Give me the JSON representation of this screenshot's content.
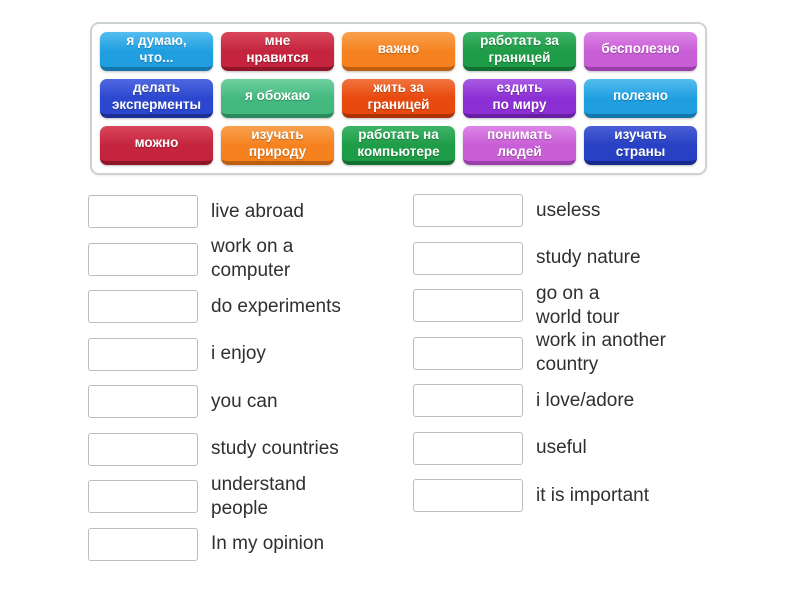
{
  "page": {
    "background": "#ffffff"
  },
  "board": {
    "background": "#ffffff",
    "border_color": "#cdd3d5",
    "tiles": [
      {
        "label": "я думаю,\nчто...",
        "color": {
          "light": "#55bdef",
          "base": "#1f9fe0",
          "dark": "#1377ac"
        }
      },
      {
        "label": "мне\nнравится",
        "color": {
          "light": "#d9475c",
          "base": "#c4243e",
          "dark": "#8f1628"
        }
      },
      {
        "label": "важно",
        "color": {
          "light": "#f9a14e",
          "base": "#f5821f",
          "dark": "#bd5e10"
        }
      },
      {
        "label": "работать за\nграницей",
        "color": {
          "light": "#3db567",
          "base": "#1f9c47",
          "dark": "#146f33"
        }
      },
      {
        "label": "бесполезно",
        "color": {
          "light": "#dc85e6",
          "base": "#c95fd6",
          "dark": "#9a3fa9"
        }
      },
      {
        "label": "делать\nэксперменты",
        "color": {
          "light": "#4f68e0",
          "base": "#2c47cf",
          "dark": "#1c2f96"
        }
      },
      {
        "label": "я обожаю",
        "color": {
          "light": "#6fd0a0",
          "base": "#43b97f",
          "dark": "#2b8a5b"
        }
      },
      {
        "label": "жить за\nграницей",
        "color": {
          "light": "#f2743f",
          "base": "#e8490e",
          "dark": "#ad3208"
        }
      },
      {
        "label": "ездить\nпо миру",
        "color": {
          "light": "#a85ae3",
          "base": "#8c2fd4",
          "dark": "#661fa0"
        }
      },
      {
        "label": "полезно",
        "color": {
          "light": "#55bdef",
          "base": "#1f9fe0",
          "dark": "#1377ac"
        }
      },
      {
        "label": "можно",
        "color": {
          "light": "#d9475c",
          "base": "#c4243e",
          "dark": "#8f1628"
        }
      },
      {
        "label": "изучать\nприроду",
        "color": {
          "light": "#f9a14e",
          "base": "#f5821f",
          "dark": "#bd5e10"
        }
      },
      {
        "label": "работать на\nкомпьютере",
        "color": {
          "light": "#3db567",
          "base": "#1f9c47",
          "dark": "#146f33"
        }
      },
      {
        "label": "понимать\nлюдей",
        "color": {
          "light": "#dc85e6",
          "base": "#c95fd6",
          "dark": "#9a3fa9"
        }
      },
      {
        "label": "изучать\nстраны",
        "color": {
          "light": "#4a5fd6",
          "base": "#2840c4",
          "dark": "#18298f"
        }
      }
    ]
  },
  "match": {
    "slot_border_color": "#b9bdbf",
    "label_color": "#303030",
    "left": [
      {
        "label": "live abroad"
      },
      {
        "label": "work on a\ncomputer"
      },
      {
        "label": "do experiments"
      },
      {
        "label": "i enjoy"
      },
      {
        "label": "you can"
      },
      {
        "label": "study countries"
      },
      {
        "label": "understand\npeople"
      },
      {
        "label": "In my opinion"
      }
    ],
    "right": [
      {
        "label": "useless"
      },
      {
        "label": "study nature"
      },
      {
        "label": "go on a\nworld tour"
      },
      {
        "label": "work in another\ncountry"
      },
      {
        "label": "i love/adore"
      },
      {
        "label": "useful"
      },
      {
        "label": "it is important"
      }
    ]
  }
}
